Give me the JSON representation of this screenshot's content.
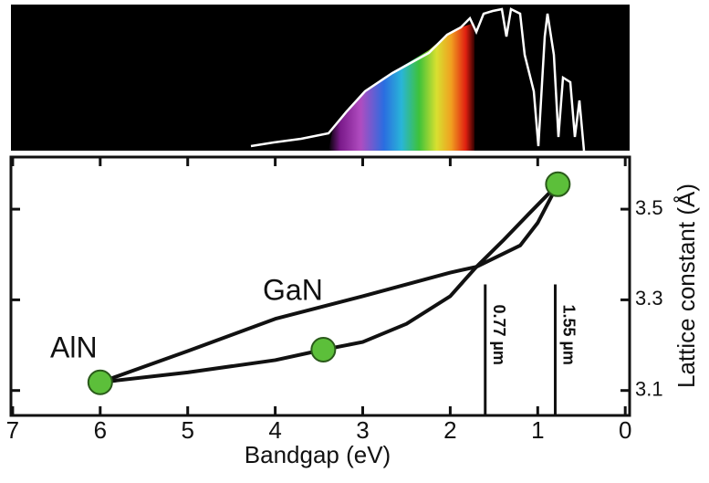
{
  "chart_data": {
    "type": "scatter",
    "xlabel": "Bandgap (eV)",
    "ylabel": "Lattice constant (Å)",
    "xlim": [
      7.02,
      -0.05
    ],
    "xticks": [
      7,
      6,
      5,
      4,
      3,
      2,
      1,
      0
    ],
    "ylim": [
      3.045,
      3.615
    ],
    "yticks": [
      3.1,
      3.3,
      3.5
    ],
    "points": {
      "color": "#5cbf3a",
      "x": [
        6.0,
        3.45,
        0.77
      ],
      "y": [
        3.118,
        3.19,
        3.555
      ]
    },
    "curves": [
      {
        "color": "#111111",
        "x": [
          6.0,
          5,
          4,
          3,
          2,
          1.7,
          1.2,
          1.0,
          0.77
        ],
        "y": [
          3.118,
          3.187,
          3.258,
          3.308,
          3.36,
          3.373,
          3.42,
          3.47,
          3.555
        ]
      },
      {
        "color": "#111111",
        "x": [
          6.0,
          5,
          4,
          3.45,
          3,
          2.5,
          2,
          1.7,
          1.4,
          1.1,
          0.77
        ],
        "y": [
          3.118,
          3.14,
          3.167,
          3.19,
          3.207,
          3.247,
          3.308,
          3.373,
          3.43,
          3.49,
          3.555
        ]
      }
    ],
    "annotations": [
      "AlN",
      "GaN"
    ],
    "vlines": [
      {
        "x": 1.6,
        "y_top": 3.334,
        "label": "0.77 µm"
      },
      {
        "x": 0.8,
        "y_top": 3.334,
        "label": "1.55 µm"
      }
    ]
  }
}
